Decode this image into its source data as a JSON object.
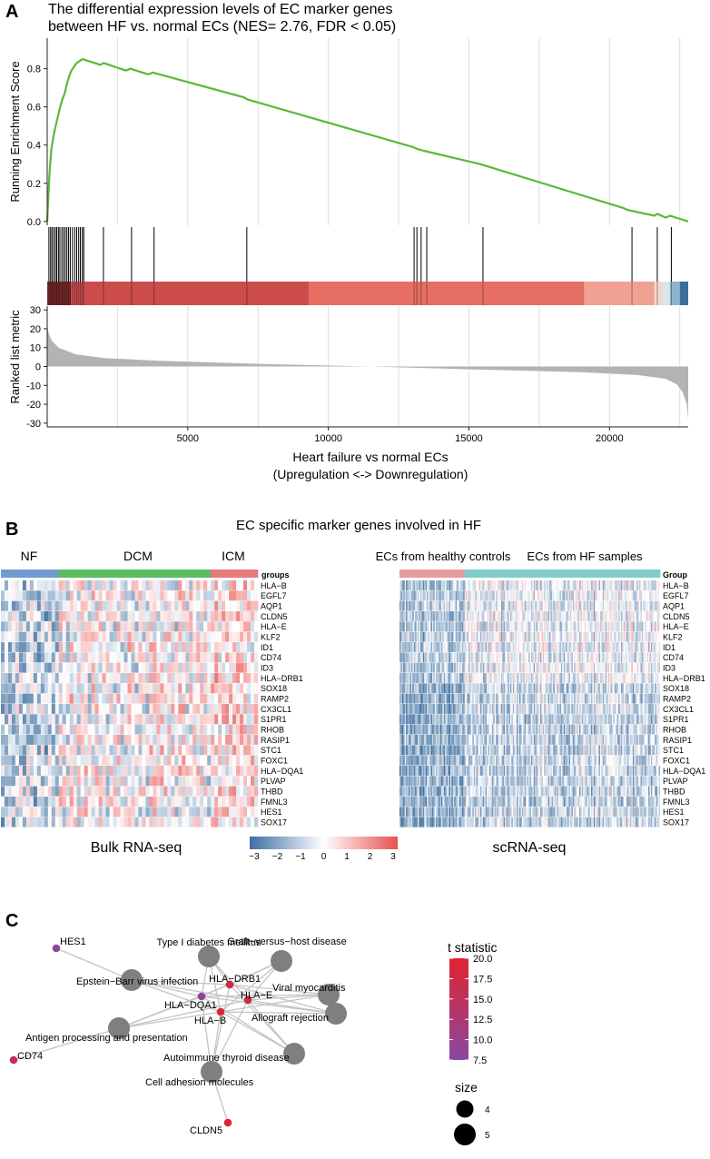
{
  "panel_labels": [
    "A",
    "B",
    "C"
  ],
  "chart_data": [
    {
      "type": "line",
      "panel": "A",
      "title_lines": [
        "The differential expression levels of EC marker genes",
        "between HF vs. normal ECs (NES= 2.76, FDR < 0.05)"
      ],
      "ylabel": "Running Enrichment Score",
      "yticks": [
        "0.0",
        "0.2",
        "0.4",
        "0.6",
        "0.8"
      ],
      "ylim": [
        -0.02,
        0.96
      ],
      "xlim": [
        0,
        22800
      ],
      "color": "#5cb83a",
      "series": [
        {
          "name": "Running Enrichment Score",
          "x": [
            0,
            80,
            150,
            230,
            300,
            380,
            460,
            540,
            620,
            700,
            780,
            860,
            950,
            1050,
            1150,
            1250,
            1900,
            2000,
            2800,
            2950,
            3600,
            3750,
            7000,
            7100,
            13000,
            13150,
            13400,
            15400,
            20500,
            20650,
            21600,
            21700,
            22000,
            22150,
            22800
          ],
          "y": [
            0.0,
            0.25,
            0.38,
            0.45,
            0.5,
            0.55,
            0.6,
            0.64,
            0.67,
            0.72,
            0.76,
            0.79,
            0.81,
            0.83,
            0.84,
            0.85,
            0.82,
            0.83,
            0.79,
            0.8,
            0.77,
            0.78,
            0.65,
            0.64,
            0.39,
            0.38,
            0.37,
            0.3,
            0.07,
            0.06,
            0.03,
            0.04,
            0.02,
            0.03,
            0.0
          ]
        }
      ],
      "hit_positions": [
        60,
        120,
        170,
        230,
        290,
        340,
        400,
        450,
        520,
        580,
        640,
        700,
        760,
        820,
        900,
        980,
        1050,
        1120,
        1180,
        1250,
        1300,
        2000,
        3000,
        3800,
        7100,
        13050,
        13150,
        13300,
        13500,
        15500,
        20800,
        21700,
        22200
      ],
      "rank_bar_segments": [
        {
          "from": 0,
          "to": 850,
          "color": "#7a2a2a"
        },
        {
          "from": 850,
          "to": 9300,
          "color": "#cc4c4c"
        },
        {
          "from": 9300,
          "to": 19100,
          "color": "#e66e62"
        },
        {
          "from": 19100,
          "to": 21600,
          "color": "#f0a192"
        },
        {
          "from": 21600,
          "to": 21900,
          "color": "#f5d6cc"
        },
        {
          "from": 21900,
          "to": 22150,
          "color": "#d7e6ef"
        },
        {
          "from": 22150,
          "to": 22500,
          "color": "#8fb3cf"
        },
        {
          "from": 22500,
          "to": 22800,
          "color": "#3c6e99"
        }
      ],
      "metric": {
        "ylabel": "Ranked list metric",
        "yticks": [
          "30",
          "20",
          "10",
          "0",
          "-10",
          "-20",
          "-30"
        ],
        "ylim": [
          -32,
          32
        ],
        "fill_color": "#b3b3b3",
        "x": [
          0,
          50,
          150,
          400,
          1000,
          2000,
          4000,
          8000,
          11500,
          15000,
          19000,
          21000,
          22000,
          22400,
          22600,
          22750,
          22800
        ],
        "values": [
          22,
          18,
          14,
          10,
          6.5,
          4.5,
          3.0,
          1.2,
          0.0,
          -1.5,
          -3.0,
          -4.5,
          -6.5,
          -9.5,
          -13.5,
          -20,
          -28
        ]
      },
      "xlabel_lines": [
        "Heart failure vs normal ECs",
        "(Upregulation <-> Downregulation)"
      ],
      "xticks": [
        5000,
        10000,
        15000,
        20000
      ],
      "xtick_labels": [
        "5000",
        "10000",
        "15000",
        "20000"
      ]
    },
    {
      "type": "heatmap",
      "panel": "B",
      "title": "EC specific marker genes involved in HF",
      "genes": [
        "HLA-B",
        "EGFL7",
        "AQP1",
        "CLDN5",
        "HLA-E",
        "KLF2",
        "ID1",
        "CD74",
        "ID3",
        "HLA-DRB1",
        "SOX18",
        "RAMP2",
        "CX3CL1",
        "S1PR1",
        "RHOB",
        "RASIP1",
        "STC1",
        "FOXC1",
        "HLA-DQA1",
        "PLVAP",
        "THBD",
        "FMNL3",
        "HES1",
        "SOX17"
      ],
      "genes_display": [
        "HLA−B",
        "EGFL7",
        "AQP1",
        "CLDN5",
        "HLA−E",
        "KLF2",
        "ID1",
        "CD74",
        "ID3",
        "HLA−DRB1",
        "SOX18",
        "RAMP2",
        "CX3CL1",
        "S1PR1",
        "RHOB",
        "RASIP1",
        "STC1",
        "FOXC1",
        "HLA−DQA1",
        "PLVAP",
        "THBD",
        "FMNL3",
        "HES1",
        "SOX17"
      ],
      "bulk": {
        "subtitle": "Bulk RNA-seq",
        "annotation_title": "groups",
        "groups": [
          {
            "name": "NF",
            "n_samples": 16,
            "color": "#6f9bd1"
          },
          {
            "name": "DCM",
            "n_samples": 42,
            "color": "#5dbb63"
          },
          {
            "name": "ICM",
            "n_samples": 13,
            "color": "#e8787c"
          }
        ],
        "seed": 17
      },
      "sc": {
        "subtitle": "scRNA-seq",
        "annotation_title": "Group",
        "groups": [
          {
            "name": "ECs from healthy controls",
            "n_samples": 50,
            "color": "#e89a9a"
          },
          {
            "name": "ECs from HF samples",
            "n_samples": 150,
            "color": "#7ecdc8"
          }
        ],
        "seed": 41
      },
      "color_scale": {
        "min": -3,
        "max": 3,
        "ticks": [
          "−3",
          "−2",
          "−1",
          "0",
          "1",
          "2",
          "3"
        ],
        "colors": [
          "#3e6fa0",
          "#ffffff",
          "#e8514f"
        ]
      }
    },
    {
      "type": "network",
      "panel": "C",
      "pathways": [
        {
          "id": "t1d",
          "label": "Type I diabetes mellitus",
          "size": 5
        },
        {
          "id": "gvhd",
          "label": "Graft−versus−host disease",
          "size": 5
        },
        {
          "id": "ebv",
          "label": "Epstein−Barr virus infection",
          "size": 5
        },
        {
          "id": "vmyo",
          "label": "Viral myocarditis",
          "size": 5
        },
        {
          "id": "allo",
          "label": "Allograft rejection",
          "size": 5
        },
        {
          "id": "apc",
          "label": "Antigen processing and presentation",
          "size": 5
        },
        {
          "id": "aitd",
          "label": "Autoimmune thyroid disease",
          "size": 5
        },
        {
          "id": "cam",
          "label": "Cell adhesion molecules",
          "size": 5
        }
      ],
      "genes": [
        {
          "id": "HES1",
          "label": "HES1",
          "t": 7.6
        },
        {
          "id": "HLA-DRB1",
          "label": "HLA−DRB1",
          "t": 17.5
        },
        {
          "id": "HLA-E",
          "label": "HLA−E",
          "t": 17.0
        },
        {
          "id": "HLA-DQA1",
          "label": "HLA−DQA1",
          "t": 9.0
        },
        {
          "id": "HLA-B",
          "label": "HLA−B",
          "t": 19.0
        },
        {
          "id": "CD74",
          "label": "CD74",
          "t": 15.5
        },
        {
          "id": "CLDN5",
          "label": "CLDN5",
          "t": 19.5
        }
      ],
      "edges": [
        [
          "HES1",
          "ebv"
        ],
        [
          "CD74",
          "apc"
        ],
        [
          "CLDN5",
          "cam"
        ],
        [
          "HLA-DRB1",
          "t1d"
        ],
        [
          "HLA-DRB1",
          "gvhd"
        ],
        [
          "HLA-DRB1",
          "ebv"
        ],
        [
          "HLA-DRB1",
          "vmyo"
        ],
        [
          "HLA-DRB1",
          "allo"
        ],
        [
          "HLA-DRB1",
          "apc"
        ],
        [
          "HLA-DRB1",
          "aitd"
        ],
        [
          "HLA-DRB1",
          "cam"
        ],
        [
          "HLA-E",
          "t1d"
        ],
        [
          "HLA-E",
          "gvhd"
        ],
        [
          "HLA-E",
          "ebv"
        ],
        [
          "HLA-E",
          "vmyo"
        ],
        [
          "HLA-E",
          "allo"
        ],
        [
          "HLA-E",
          "apc"
        ],
        [
          "HLA-E",
          "aitd"
        ],
        [
          "HLA-E",
          "cam"
        ],
        [
          "HLA-DQA1",
          "t1d"
        ],
        [
          "HLA-DQA1",
          "gvhd"
        ],
        [
          "HLA-DQA1",
          "ebv"
        ],
        [
          "HLA-DQA1",
          "vmyo"
        ],
        [
          "HLA-DQA1",
          "allo"
        ],
        [
          "HLA-DQA1",
          "apc"
        ],
        [
          "HLA-DQA1",
          "aitd"
        ],
        [
          "HLA-DQA1",
          "cam"
        ],
        [
          "HLA-B",
          "t1d"
        ],
        [
          "HLA-B",
          "gvhd"
        ],
        [
          "HLA-B",
          "ebv"
        ],
        [
          "HLA-B",
          "vmyo"
        ],
        [
          "HLA-B",
          "allo"
        ],
        [
          "HLA-B",
          "apc"
        ],
        [
          "HLA-B",
          "aitd"
        ],
        [
          "HLA-B",
          "cam"
        ]
      ],
      "legend_t": {
        "title": "t statistic",
        "min": 7.5,
        "max": 20.0,
        "ticks": [
          "20.0",
          "17.5",
          "15.0",
          "12.5",
          "10.0",
          "7.5"
        ],
        "low_color": "#8a47a0",
        "high_color": "#e0242f"
      },
      "legend_size": {
        "title": "size",
        "values": [
          "4",
          "5"
        ]
      },
      "pathway_color": "#7f7f7f"
    }
  ]
}
